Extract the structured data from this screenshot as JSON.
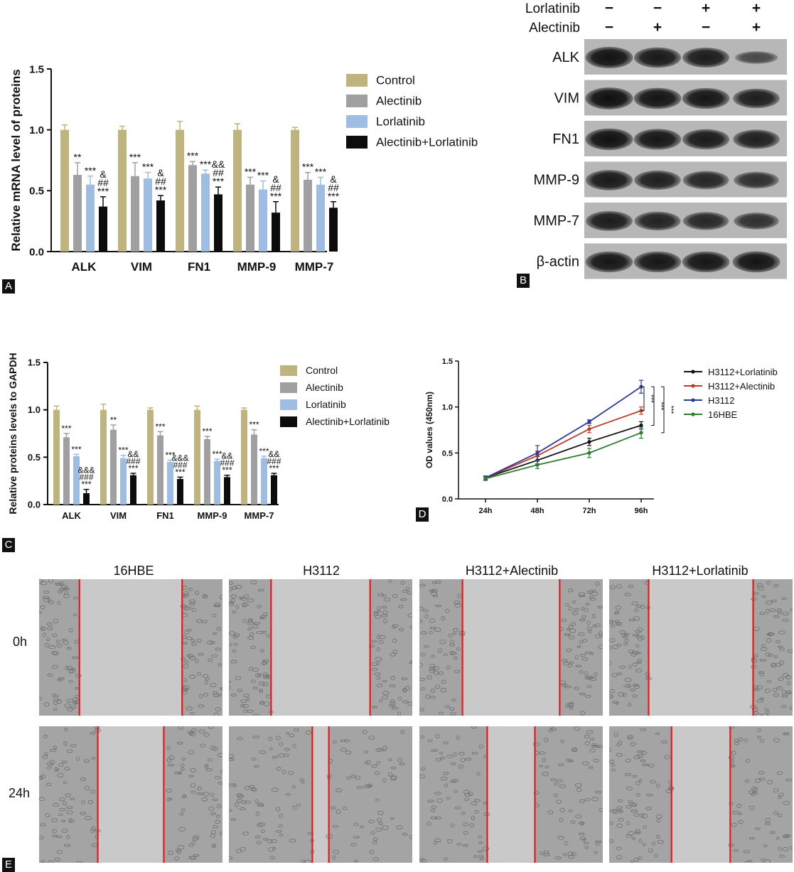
{
  "panels": {
    "A": "A",
    "B": "B",
    "C": "C",
    "D": "D",
    "E": "E"
  },
  "chart_data": [
    {
      "id": "A",
      "type": "bar",
      "ylabel": "Relative mRNA level of proteins",
      "ylim": [
        0,
        1.5
      ],
      "yticks": [
        "0.0",
        "0.5",
        "1.0",
        "1.5"
      ],
      "categories": [
        "ALK",
        "VIM",
        "FN1",
        "MMP-9",
        "MMP-7"
      ],
      "series": [
        {
          "name": "Control",
          "color": "#bfb37e",
          "values": [
            1.0,
            1.0,
            1.0,
            1.0,
            1.0
          ],
          "errors": [
            0.04,
            0.03,
            0.07,
            0.05,
            0.02
          ]
        },
        {
          "name": "Alectinib",
          "color": "#a0a0a2",
          "values": [
            0.63,
            0.62,
            0.71,
            0.55,
            0.59
          ],
          "errors": [
            0.1,
            0.11,
            0.03,
            0.06,
            0.06
          ]
        },
        {
          "name": "Lorlatinib",
          "color": "#9fbde3",
          "values": [
            0.55,
            0.6,
            0.64,
            0.51,
            0.55
          ],
          "errors": [
            0.07,
            0.05,
            0.03,
            0.07,
            0.06
          ]
        },
        {
          "name": "Alectinib+Lorlatinib",
          "color": "#0c0c0c",
          "values": [
            0.37,
            0.42,
            0.47,
            0.32,
            0.36
          ],
          "errors": [
            0.08,
            0.04,
            0.06,
            0.09,
            0.05
          ]
        }
      ],
      "annotations": [
        [
          "",
          "**",
          "***",
          "&\n##\n***"
        ],
        [
          "",
          "***",
          "***",
          "&\n##\n***"
        ],
        [
          "",
          "***",
          "***",
          "&&\n##\n***"
        ],
        [
          "",
          "***",
          "***",
          "&\n##\n***"
        ],
        [
          "",
          "***",
          "***",
          "&\n##\n***"
        ]
      ]
    },
    {
      "id": "C",
      "type": "bar",
      "ylabel": "Relative proteins levels to GAPDH",
      "ylim": [
        0,
        1.5
      ],
      "yticks": [
        "0.0",
        "0.5",
        "1.0",
        "1.5"
      ],
      "categories": [
        "ALK",
        "VIM",
        "FN1",
        "MMP-9",
        "MMP-7"
      ],
      "series": [
        {
          "name": "Control",
          "color": "#bfb37e",
          "values": [
            1.0,
            1.0,
            1.0,
            1.0,
            1.0
          ],
          "errors": [
            0.04,
            0.06,
            0.02,
            0.04,
            0.02
          ]
        },
        {
          "name": "Alectinib",
          "color": "#a0a0a2",
          "values": [
            0.71,
            0.79,
            0.73,
            0.69,
            0.74
          ],
          "errors": [
            0.04,
            0.05,
            0.04,
            0.03,
            0.05
          ]
        },
        {
          "name": "Lorlatinib",
          "color": "#9fbde3",
          "values": [
            0.51,
            0.49,
            0.45,
            0.46,
            0.49
          ],
          "errors": [
            0.02,
            0.03,
            0.02,
            0.02,
            0.02
          ]
        },
        {
          "name": "Alectinib+Lorlatinib",
          "color": "#0c0c0c",
          "values": [
            0.12,
            0.31,
            0.27,
            0.29,
            0.31
          ],
          "errors": [
            0.04,
            0.02,
            0.02,
            0.02,
            0.02
          ]
        }
      ],
      "annotations": [
        [
          "",
          "***",
          "***",
          "&&&\n###\n***"
        ],
        [
          "",
          "**",
          "***",
          "&&\n###\n***"
        ],
        [
          "",
          "***",
          "***",
          "&&&\n###\n***"
        ],
        [
          "",
          "***",
          "***",
          "&&\n###\n***"
        ],
        [
          "",
          "***",
          "***",
          "&&\n###\n***"
        ]
      ]
    },
    {
      "id": "D",
      "type": "line",
      "ylabel": "OD values (450nm)",
      "ylim": [
        0,
        1.5
      ],
      "yticks": [
        "0.0",
        "0.5",
        "1.0",
        "1.5"
      ],
      "x": [
        "24h",
        "48h",
        "72h",
        "96h"
      ],
      "series": [
        {
          "name": "H3112+Lorlatinib",
          "color": "#111111",
          "values": [
            0.23,
            0.42,
            0.62,
            0.8
          ],
          "errors": [
            0.02,
            0.04,
            0.04,
            0.04
          ]
        },
        {
          "name": "H3112+Alectinib",
          "color": "#c0392b",
          "values": [
            0.23,
            0.47,
            0.76,
            0.96
          ],
          "errors": [
            0.02,
            0.05,
            0.04,
            0.04
          ]
        },
        {
          "name": "H3112",
          "color": "#2b3a9a",
          "values": [
            0.23,
            0.5,
            0.84,
            1.22
          ],
          "errors": [
            0.02,
            0.08,
            0.02,
            0.07
          ]
        },
        {
          "name": "16HBE",
          "color": "#2e7d32",
          "values": [
            0.22,
            0.37,
            0.5,
            0.72
          ],
          "errors": [
            0.02,
            0.04,
            0.05,
            0.06
          ]
        }
      ],
      "significance": [
        "***",
        "***",
        "***"
      ]
    }
  ],
  "western_blot": {
    "treatments": [
      {
        "label": "Lorlatinib",
        "signs": [
          "−",
          "−",
          "+",
          "+"
        ]
      },
      {
        "label": "Alectinib",
        "signs": [
          "−",
          "+",
          "−",
          "+"
        ]
      }
    ],
    "proteins": [
      {
        "name": "ALK",
        "intensity": [
          0.92,
          0.85,
          0.82,
          0.35
        ]
      },
      {
        "name": "VIM",
        "intensity": [
          0.95,
          0.9,
          0.88,
          0.8
        ]
      },
      {
        "name": "FN1",
        "intensity": [
          0.93,
          0.88,
          0.84,
          0.78
        ]
      },
      {
        "name": "MMP-9",
        "intensity": [
          0.85,
          0.78,
          0.72,
          0.62
        ]
      },
      {
        "name": "MMP-7",
        "intensity": [
          0.82,
          0.75,
          0.7,
          0.62
        ]
      },
      {
        "name": "β-actin",
        "intensity": [
          0.88,
          0.88,
          0.88,
          0.9
        ]
      }
    ]
  },
  "scratch_assay": {
    "columns": [
      "16HBE",
      "H3112",
      "H3112+Alectinib",
      "H3112+Lorlatinib"
    ],
    "rows": [
      "0h",
      "24h"
    ],
    "gap_fraction": [
      [
        0.56,
        0.54,
        0.53,
        0.57
      ],
      [
        0.36,
        0.09,
        0.26,
        0.32
      ]
    ]
  }
}
